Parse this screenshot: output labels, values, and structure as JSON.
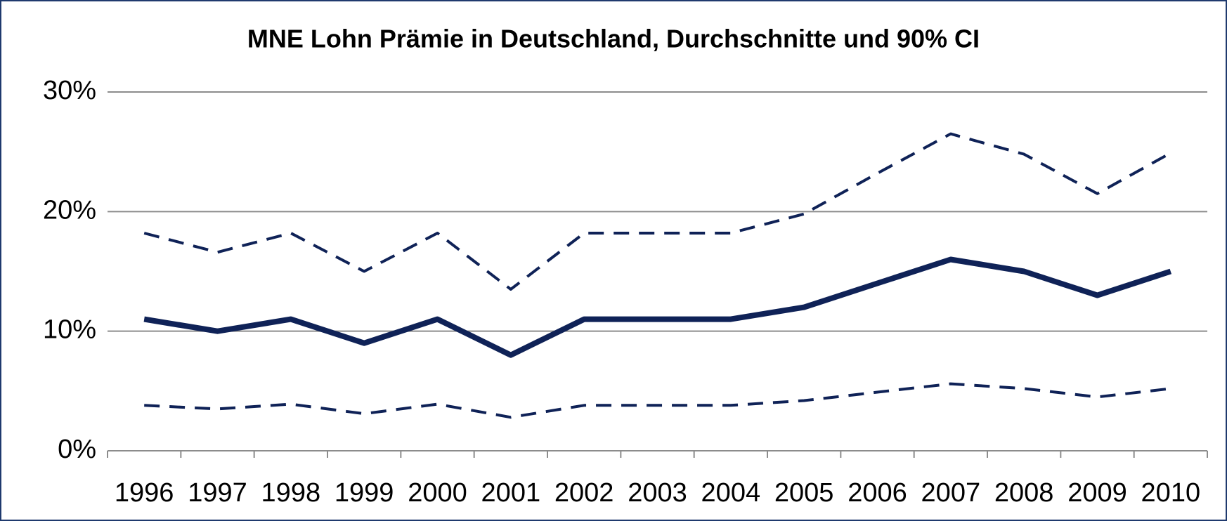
{
  "chart_data": {
    "type": "line",
    "title": "MNE Lohn Prämie in Deutschland, Durchschnitte und 90% CI",
    "categories": [
      "1996",
      "1997",
      "1998",
      "1999",
      "2000",
      "2001",
      "2002",
      "2003",
      "2004",
      "2005",
      "2006",
      "2007",
      "2008",
      "2009",
      "2010"
    ],
    "series": [
      {
        "color": "#0f2257",
        "dashed": true,
        "values": [
          18.2,
          16.6,
          18.2,
          15,
          18.2,
          13.5,
          18.2,
          18.2,
          18.2,
          19.8,
          23.2,
          26.5,
          24.8,
          21.5,
          24.9
        ]
      },
      {
        "color": "#0f2257",
        "dashed": false,
        "values": [
          11,
          10,
          11,
          9,
          11,
          8,
          11,
          11,
          11,
          12,
          14,
          16,
          15,
          13,
          15
        ]
      },
      {
        "color": "#0f2257",
        "dashed": true,
        "values": [
          3.8,
          3.5,
          3.9,
          3.1,
          3.9,
          2.8,
          3.8,
          3.8,
          3.8,
          4.2,
          4.9,
          5.6,
          5.2,
          4.5,
          5.2
        ]
      }
    ],
    "ylim": [
      0,
      30
    ],
    "yticks": [
      {
        "value": 0,
        "label": "0%"
      },
      {
        "value": 10,
        "label": "10%"
      },
      {
        "value": 20,
        "label": "20%"
      },
      {
        "value": 30,
        "label": "30%"
      }
    ],
    "grid": true
  }
}
